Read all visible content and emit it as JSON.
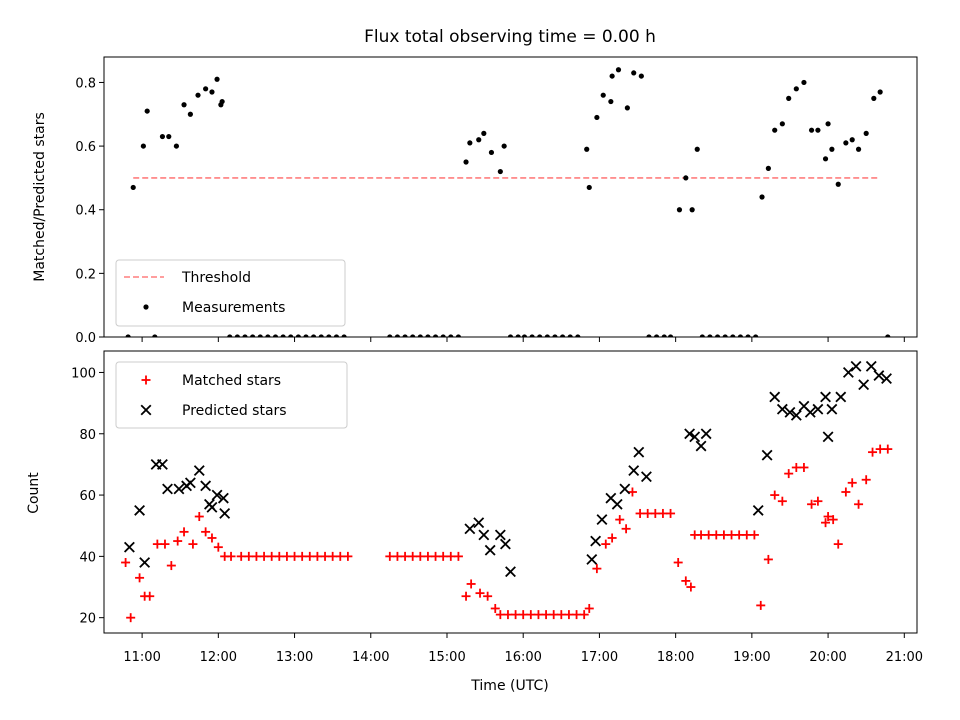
{
  "chart_data": [
    {
      "type": "scatter",
      "panel": "top",
      "title": "Flux total observing time = 0.00 h",
      "xlabel": "",
      "ylabel": "Matched/Predicted stars",
      "ylim": [
        0,
        0.88
      ],
      "yticks": [
        0,
        0.2,
        0.4,
        0.6,
        0.8
      ],
      "ytick_labels": [
        "0.0",
        "0.2",
        "0.4",
        "0.6",
        "0.8"
      ],
      "xlim": [
        "10:30",
        "21:10"
      ],
      "legend": {
        "placement": "lower-left",
        "entries": [
          "Threshold",
          "Measurements"
        ]
      },
      "threshold": {
        "name": "Threshold",
        "value": 0.5,
        "x_start": "10:53",
        "x_end": "20:40",
        "color": "#ff7f7f",
        "style": "dashed"
      },
      "series": [
        {
          "name": "Measurements",
          "color": "#000000",
          "marker": "dot",
          "x": [
            "10:49",
            "10:53",
            "11:01",
            "11:04",
            "11:10",
            "11:16",
            "11:21",
            "11:27",
            "11:33",
            "11:38",
            "11:44",
            "11:50",
            "11:55",
            "11:59",
            "12:02",
            "12:03",
            "12:09",
            "12:15",
            "12:21",
            "12:27",
            "12:33",
            "12:39",
            "12:45",
            "12:51",
            "12:57",
            "13:03",
            "13:09",
            "13:15",
            "13:21",
            "13:27",
            "13:33",
            "13:39",
            "14:15",
            "14:21",
            "14:27",
            "14:33",
            "14:39",
            "14:45",
            "14:51",
            "14:57",
            "15:03",
            "15:09",
            "15:15",
            "15:18",
            "15:25",
            "15:29",
            "15:35",
            "15:42",
            "15:45",
            "15:50",
            "15:56",
            "16:01",
            "16:07",
            "16:13",
            "16:19",
            "16:25",
            "16:31",
            "16:37",
            "16:43",
            "16:50",
            "16:52",
            "16:58",
            "17:03",
            "17:09",
            "17:10",
            "17:15",
            "17:22",
            "17:27",
            "17:33",
            "17:39",
            "17:45",
            "17:51",
            "17:56",
            "18:03",
            "18:08",
            "18:13",
            "18:17",
            "18:21",
            "18:27",
            "18:33",
            "18:39",
            "18:45",
            "18:51",
            "18:57",
            "19:03",
            "19:08",
            "19:13",
            "19:18",
            "19:24",
            "19:29",
            "19:35",
            "19:41",
            "19:47",
            "19:52",
            "19:58",
            "20:00",
            "20:03",
            "20:08",
            "20:14",
            "20:19",
            "20:24",
            "20:30",
            "20:36",
            "20:41",
            "20:47"
          ],
          "values": [
            0.0,
            0.47,
            0.6,
            0.71,
            0.0,
            0.63,
            0.63,
            0.6,
            0.73,
            0.7,
            0.76,
            0.78,
            0.77,
            0.81,
            0.73,
            0.74,
            0.0,
            0.0,
            0.0,
            0.0,
            0.0,
            0.0,
            0.0,
            0.0,
            0.0,
            0.0,
            0.0,
            0.0,
            0.0,
            0.0,
            0.0,
            0.0,
            0.0,
            0.0,
            0.0,
            0.0,
            0.0,
            0.0,
            0.0,
            0.0,
            0.0,
            0.0,
            0.55,
            0.61,
            0.62,
            0.64,
            0.58,
            0.52,
            0.6,
            0.0,
            0.0,
            0.0,
            0.0,
            0.0,
            0.0,
            0.0,
            0.0,
            0.0,
            0.0,
            0.59,
            0.47,
            0.69,
            0.76,
            0.74,
            0.82,
            0.84,
            0.72,
            0.83,
            0.82,
            0.0,
            0.0,
            0.0,
            0.0,
            0.4,
            0.5,
            0.4,
            0.59,
            0.0,
            0.0,
            0.0,
            0.0,
            0.0,
            0.0,
            0.0,
            0.0,
            0.44,
            0.53,
            0.65,
            0.67,
            0.75,
            0.78,
            0.8,
            0.65,
            0.65,
            0.56,
            0.67,
            0.59,
            0.48,
            0.61,
            0.62,
            0.59,
            0.64,
            0.75,
            0.77,
            0.0
          ]
        }
      ]
    },
    {
      "type": "scatter",
      "panel": "bottom",
      "title": "",
      "xlabel": "Time (UTC)",
      "ylabel": "Count",
      "ylim": [
        15,
        107
      ],
      "yticks": [
        20,
        40,
        60,
        80,
        100
      ],
      "ytick_labels": [
        "20",
        "40",
        "60",
        "80",
        "100"
      ],
      "xlim": [
        "10:30",
        "21:10"
      ],
      "xticks": [
        "11:00",
        "12:00",
        "13:00",
        "14:00",
        "15:00",
        "16:00",
        "17:00",
        "18:00",
        "19:00",
        "20:00",
        "21:00"
      ],
      "xtick_labels": [
        "11:00",
        "12:00",
        "13:00",
        "14:00",
        "15:00",
        "16:00",
        "17:00",
        "18:00",
        "19:00",
        "20:00",
        "21:00"
      ],
      "legend": {
        "placement": "upper-left",
        "entries": [
          "Matched stars",
          "Predicted stars"
        ]
      },
      "series": [
        {
          "name": "Matched stars",
          "color": "#ff0000",
          "marker": "plus",
          "x": [
            "10:47",
            "10:51",
            "10:58",
            "11:02",
            "11:06",
            "11:12",
            "11:18",
            "11:23",
            "11:28",
            "11:33",
            "11:40",
            "11:45",
            "11:50",
            "11:55",
            "12:00",
            "12:05",
            "12:10",
            "12:18",
            "12:24",
            "12:30",
            "12:36",
            "12:42",
            "12:48",
            "12:54",
            "13:00",
            "13:06",
            "13:12",
            "13:18",
            "13:24",
            "13:30",
            "13:36",
            "13:42",
            "14:15",
            "14:21",
            "14:27",
            "14:33",
            "14:39",
            "14:45",
            "14:51",
            "14:57",
            "15:03",
            "15:09",
            "15:15",
            "15:19",
            "15:26",
            "15:32",
            "15:38",
            "15:42",
            "15:48",
            "15:54",
            "16:00",
            "16:06",
            "16:12",
            "16:18",
            "16:24",
            "16:30",
            "16:36",
            "16:42",
            "16:48",
            "16:52",
            "16:58",
            "17:05",
            "17:10",
            "17:16",
            "17:21",
            "17:26",
            "17:32",
            "17:38",
            "17:44",
            "17:50",
            "17:56",
            "18:02",
            "18:08",
            "18:12",
            "18:15",
            "18:20",
            "18:26",
            "18:32",
            "18:38",
            "18:44",
            "18:50",
            "18:56",
            "19:02",
            "19:07",
            "19:13",
            "19:18",
            "19:24",
            "19:29",
            "19:35",
            "19:41",
            "19:47",
            "19:52",
            "19:58",
            "20:00",
            "20:04",
            "20:08",
            "20:14",
            "20:19",
            "20:24",
            "20:30",
            "20:35",
            "20:41",
            "20:47"
          ],
          "values": [
            38,
            20,
            33,
            27,
            27,
            44,
            44,
            37,
            45,
            48,
            44,
            53,
            48,
            46,
            43,
            40,
            40,
            40,
            40,
            40,
            40,
            40,
            40,
            40,
            40,
            40,
            40,
            40,
            40,
            40,
            40,
            40,
            40,
            40,
            40,
            40,
            40,
            40,
            40,
            40,
            40,
            40,
            27,
            31,
            28,
            27,
            23,
            21,
            21,
            21,
            21,
            21,
            21,
            21,
            21,
            21,
            21,
            21,
            21,
            23,
            36,
            44,
            46,
            52,
            49,
            61,
            54,
            54,
            54,
            54,
            54,
            38,
            32,
            30,
            47,
            47,
            47,
            47,
            47,
            47,
            47,
            47,
            47,
            24,
            39,
            60,
            58,
            67,
            69,
            69,
            57,
            58,
            51,
            53,
            52,
            44,
            61,
            64,
            57,
            65,
            74,
            75,
            75
          ]
        },
        {
          "name": "Predicted stars",
          "color": "#000000",
          "marker": "x",
          "x": [
            "10:50",
            "10:58",
            "11:02",
            "11:11",
            "11:16",
            "11:20",
            "11:29",
            "11:35",
            "11:38",
            "11:45",
            "11:50",
            "11:53",
            "11:55",
            "11:59",
            "12:04",
            "12:05",
            "15:18",
            "15:25",
            "15:29",
            "15:34",
            "15:42",
            "15:46",
            "15:50",
            "16:54",
            "16:57",
            "17:02",
            "17:09",
            "17:14",
            "17:20",
            "17:27",
            "17:31",
            "17:37",
            "18:11",
            "18:15",
            "18:20",
            "18:24",
            "19:05",
            "19:12",
            "19:18",
            "19:24",
            "19:30",
            "19:35",
            "19:41",
            "19:46",
            "19:52",
            "19:58",
            "20:00",
            "20:03",
            "20:10",
            "20:16",
            "20:22",
            "20:28",
            "20:34",
            "20:40",
            "20:46"
          ],
          "values": [
            43,
            55,
            38,
            70,
            70,
            62,
            62,
            63,
            64,
            68,
            63,
            57,
            56,
            60,
            59,
            54,
            49,
            51,
            47,
            42,
            47,
            44,
            35,
            39,
            45,
            52,
            59,
            57,
            62,
            68,
            74,
            66,
            80,
            79,
            76,
            80,
            55,
            73,
            92,
            88,
            87,
            86,
            89,
            87,
            88,
            92,
            79,
            88,
            92,
            100,
            102,
            96,
            102,
            99,
            98
          ]
        }
      ]
    }
  ]
}
